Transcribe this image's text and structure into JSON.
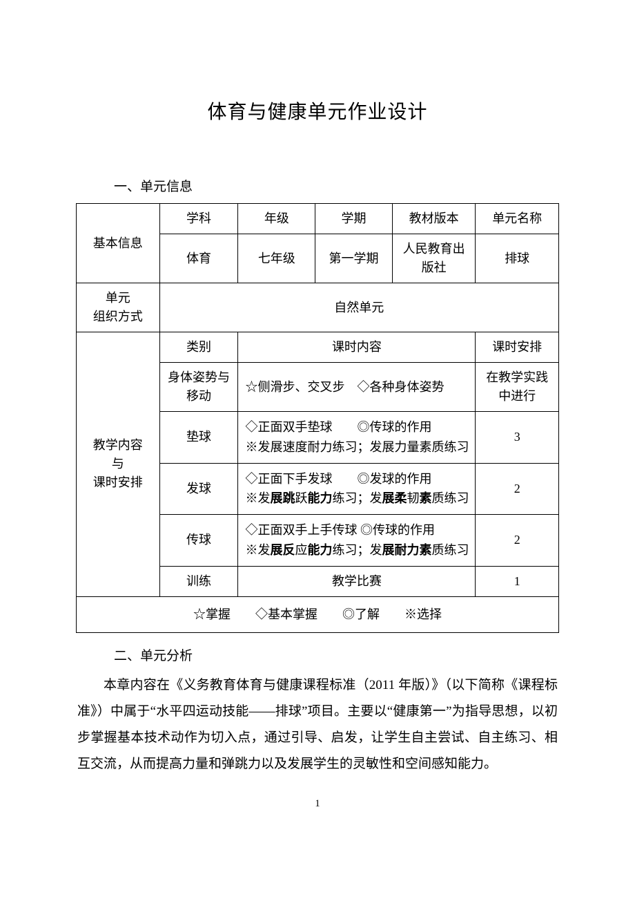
{
  "title": "体育与健康单元作业设计",
  "section1_header": "一、单元信息",
  "section2_header": "二、单元分析",
  "table": {
    "row1_label": "基本信息",
    "row1_h1": "学科",
    "row1_h2": "年级",
    "row1_h3": "学期",
    "row1_h4": "教材版本",
    "row1_h5": "单元名称",
    "row2_c1": "体育",
    "row2_c2": "七年级",
    "row2_c3": "第一学期",
    "row2_c4": "人民教育出版社",
    "row2_c5": "排球",
    "row3_label": "单元\n组织方式",
    "row3_value": "自然单元",
    "row4_label": "教学内容\n与\n课时安排",
    "row4_h1": "类别",
    "row4_h2": "课时内容",
    "row4_h3": "课时安排",
    "row5_c1": "身体姿势与移动",
    "row5_c2": "☆侧滑步、交叉步　◇各种身体姿势",
    "row5_c3": "在教学实践中进行",
    "row6_c1": "垫球",
    "row6_c2": "◇正面双手垫球　　◎传球的作用\n※发展速度耐力练习；发展力量素质练习",
    "row6_c3": "3",
    "row7_c1": "发球",
    "row7_c3": "2",
    "row8_c1": "传球",
    "row8_c3": "2",
    "row9_c1": "训练",
    "row9_c2": "教学比赛",
    "row9_c3": "1",
    "legend": "☆掌握　　◇基本掌握　　◎了解　　※选择"
  },
  "paragraph": "本章内容在《义务教育体育与健康课程标准（2011 年版）》（以下简称《课程标准》）中属于“水平四运动技能——排球”项目。主要以“健康第一”为指导思想，以初步掌握基本技术动作为切入点，通过引导、启发，让学生自主尝试、自主练习、相互交流，从而提高力量和弹跳力以及发展学生的灵敏性和空间感知能力。",
  "page_number": "1"
}
